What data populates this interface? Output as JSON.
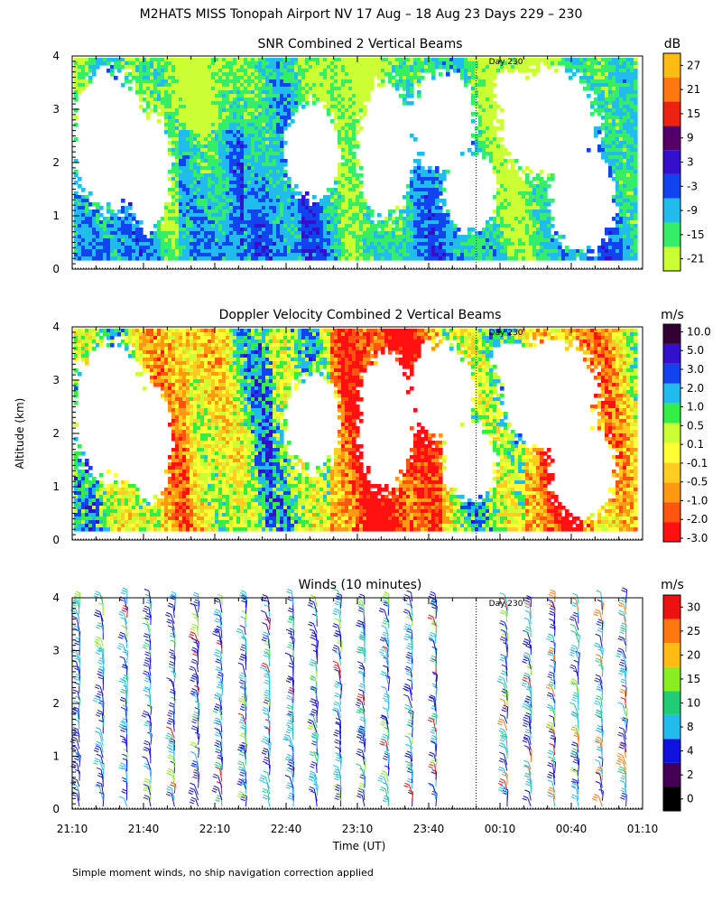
{
  "figure_title": "M2HATS MISS Tonopah Airport NV  17 Aug – 18 Aug 23 Days 229 – 230",
  "ylabel": "Altitude (km)",
  "xlabel": "Time (UT)",
  "footnote": "Simple moment winds, no ship navigation correction applied",
  "day_marker_label": "Day 230",
  "y_ticks": [
    "0",
    "1",
    "2",
    "3",
    "4"
  ],
  "x_ticks": [
    "21:10",
    "21:40",
    "22:10",
    "22:40",
    "23:10",
    "23:40",
    "00:10",
    "00:40",
    "01:10"
  ],
  "colors": {
    "snr": [
      "#ccff33",
      "#33ee66",
      "#22bbee",
      "#1144ee",
      "#3311cc",
      "#550066",
      "#ee2211",
      "#ff7711",
      "#ffbb11"
    ],
    "velocity": [
      "#ff1111",
      "#ff5511",
      "#ff9911",
      "#ffcc22",
      "#ffff33",
      "#ccff33",
      "#33ee44",
      "#22bbee",
      "#1144ee",
      "#3311cc",
      "#330033"
    ],
    "wind": [
      "#000000",
      "#440055",
      "#1111dd",
      "#22bbee",
      "#22cc77",
      "#88ee22",
      "#ffbb11",
      "#ff7711",
      "#ee1111"
    ]
  },
  "chart_data": [
    {
      "type": "heatmap",
      "title": "SNR Combined 2 Vertical Beams",
      "unit": "dB",
      "x_range": [
        "21:10",
        "01:10"
      ],
      "ylim": [
        0,
        4
      ],
      "day_boundary": "00:00",
      "colorbar_labels": [
        "-21",
        "-15",
        "-9",
        "-3",
        "3",
        "9",
        "15",
        "21",
        "27"
      ]
    },
    {
      "type": "heatmap",
      "title": "Doppler Velocity Combined 2 Vertical Beams",
      "unit": "m/s",
      "x_range": [
        "21:10",
        "01:10"
      ],
      "ylim": [
        0,
        4
      ],
      "day_boundary": "00:00",
      "colorbar_labels": [
        "-3.0",
        "-2.0",
        "-1.0",
        "-0.5",
        "-0.1",
        "0.1",
        "0.5",
        "1.0",
        "2.0",
        "3.0",
        "5.0",
        "10.0"
      ]
    },
    {
      "type": "scatter",
      "title": "Winds (10 minutes)",
      "unit": "m/s",
      "x_range": [
        "21:10",
        "01:10"
      ],
      "ylim": [
        0,
        4
      ],
      "day_boundary": "00:00",
      "colorbar_labels": [
        "0",
        "2",
        "4",
        "8",
        "10",
        "15",
        "20",
        "25",
        "30"
      ]
    }
  ]
}
